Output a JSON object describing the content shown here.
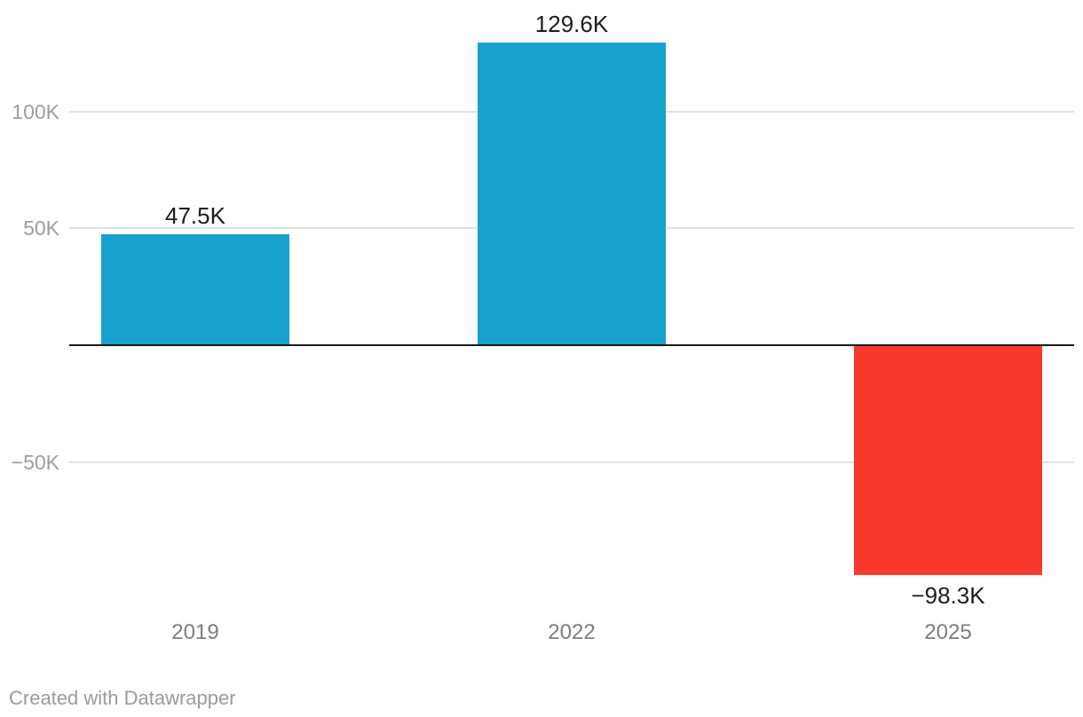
{
  "chart_data": {
    "type": "bar",
    "title": "",
    "xlabel": "",
    "ylabel": "",
    "categories": [
      "2019",
      "2022",
      "2025"
    ],
    "values": [
      47500,
      129600,
      -98300
    ],
    "value_labels": [
      "47.5K",
      "129.6K",
      "−98.3K"
    ],
    "y_ticks": [
      {
        "value": 100000,
        "label": "100K"
      },
      {
        "value": 50000,
        "label": "50K"
      },
      {
        "value": -50000,
        "label": "−50K"
      }
    ],
    "ylim": [
      -110000,
      148000
    ],
    "baseline_value": 0,
    "grid": true,
    "legend_position": "none"
  },
  "colors": {
    "bar_positive": "#18a1cd",
    "bar_negative": "#f8372d",
    "gridline": "#e2e2e2",
    "baseline": "#1a1a1a",
    "tick_label": "#9e9e9e",
    "category_label": "#7d7d7d",
    "value_label": "#1d1d1d",
    "attribution": "#9b9b9b"
  },
  "footer": {
    "attribution": "Created with Datawrapper"
  }
}
